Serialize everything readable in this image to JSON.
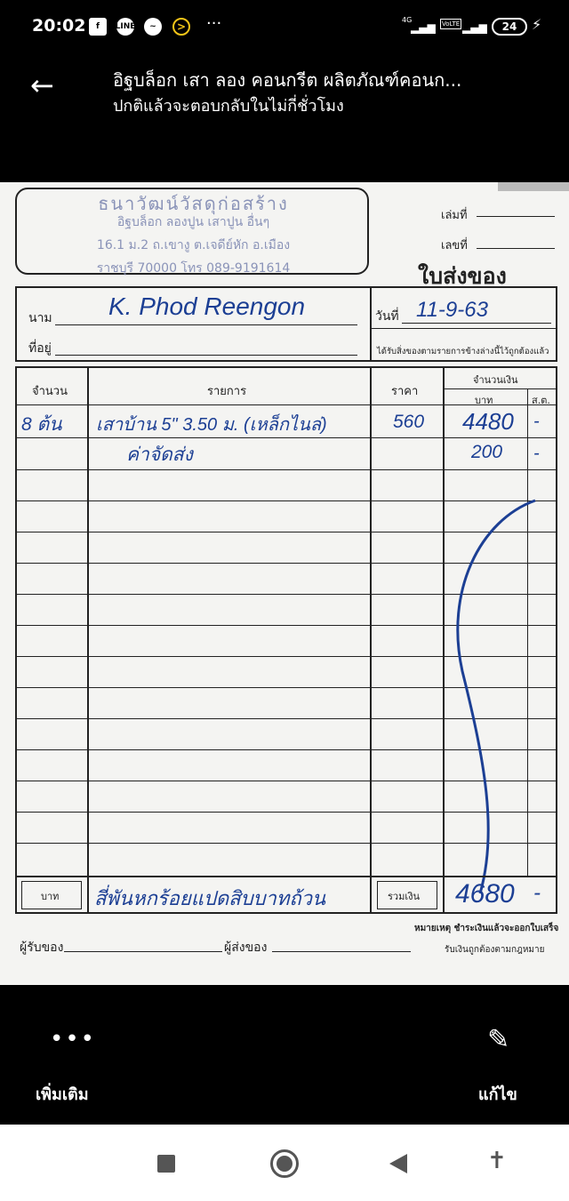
{
  "status_bar": {
    "time": "20:02",
    "notifications": [
      "facebook-icon",
      "line-icon",
      "messenger-icon",
      "arrow-circle-icon"
    ],
    "more": "···",
    "network1": "4G",
    "network2": "VoLTE",
    "battery": "24"
  },
  "header": {
    "title": "อิฐบล็อก เสา ลอง คอนกรีต ผลิตภัณฑ์คอนก...",
    "subtitle": "ปกติแล้วจะตอบกลับในไม่กี่ชั่วโมง"
  },
  "receipt": {
    "stamp": [
      "ธนาวัฒน์วัสดุก่อสร้าง",
      "อิฐบล็อก ลองปูน เสาปูน อื่นๆ",
      "16.1 ม.2 ถ.เขางู ต.เจดีย์หัก อ.เมือง",
      "ราชบุรี 70000 โทร 089-9191614"
    ],
    "book_no_label": "เล่มที่",
    "number_label": "เลขที่",
    "doc_title": "ใบส่งของ",
    "name_label": "นาม",
    "name_value": "K. Phod Reengon",
    "address_label": "ที่อยู่",
    "date_label": "วันที่",
    "date_value": "11-9-63",
    "received_note": "ได้รับสิ่งของตามรายการข้างล่างนี้ไว้ถูกต้องแล้ว",
    "columns": {
      "qty": "จำนวน",
      "item": "รายการ",
      "price": "ราคา",
      "amount": "จำนวนเงิน",
      "baht": "บาท",
      "satang": "ส.ต."
    },
    "items": [
      {
        "qty": "8 ต้น",
        "desc": "เสาบ้าน 5\" 3.50 ม. (เหล็กไนล่)",
        "price": "560",
        "baht": "4480",
        "satang": "-"
      },
      {
        "qty": "",
        "desc": "ค่าจัดส่ง",
        "price": "",
        "baht": "200",
        "satang": "-"
      }
    ],
    "baht_label": "บาท",
    "total_words": "สี่พันหกร้อยแปดสิบบาทถ้วน",
    "total_label": "รวมเงิน",
    "total_value": "4680",
    "total_satang": "-",
    "receiver_label": "ผู้รับของ",
    "sender_label": "ผู้ส่งของ",
    "remark1": "หมายเหตุ ชำระเงินแล้วจะออกใบเสร็จ",
    "remark2": "รับเงินถูกต้องตามกฎหมาย"
  },
  "actions": {
    "more_label": "เพิ่มเติม",
    "edit_label": "แก้ไข"
  },
  "colors": {
    "ink": "#1c3f94",
    "background": "#000000"
  }
}
